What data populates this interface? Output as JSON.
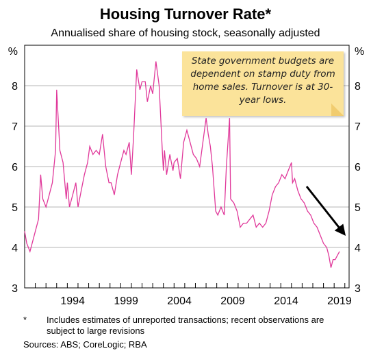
{
  "title": "Housing Turnover Rate*",
  "subtitle": "Annualised share of housing stock, seasonally adjusted",
  "annotation": "State government budgets are dependent on stamp duty from home sales. Turnover is at 30-year lows.",
  "footnote_marker": "*",
  "footnote_text": "Includes estimates of unreported transactions; recent observations are subject to large revisions",
  "sources": "Sources:   ABS; CoreLogic; RBA",
  "colors": {
    "line": "#e0389a",
    "grid": "#b4b4b4",
    "arrow": "#000000",
    "note_bg": "#fbe39a"
  },
  "chart_data": {
    "type": "line",
    "title": "Housing Turnover Rate*",
    "subtitle": "Annualised share of housing stock, seasonally adjusted",
    "y_unit_label": "%",
    "ylim": [
      3,
      9
    ],
    "xlim": [
      1990.0,
      2020.4
    ],
    "y_ticks": [
      3,
      4,
      5,
      6,
      7,
      8
    ],
    "x_ticks": [
      1994,
      1999,
      2004,
      2009,
      2014,
      2019
    ],
    "x_tick_labels": [
      "1994",
      "1999",
      "2004",
      "2009",
      "2014",
      "2019"
    ],
    "grid": true,
    "series": [
      {
        "x": [
          1990.0,
          1990.2,
          1990.5,
          1990.8,
          1991.0,
          1991.3,
          1991.5,
          1991.7,
          1992.0,
          1992.3,
          1992.6,
          1992.9,
          1993.0,
          1993.3,
          1993.6,
          1993.9,
          1994.0,
          1994.2,
          1994.5,
          1994.8,
          1995.0,
          1995.3,
          1995.6,
          1995.9,
          1996.1,
          1996.4,
          1996.7,
          1997.0,
          1997.3,
          1997.6,
          1997.9,
          1998.1,
          1998.4,
          1998.7,
          1999.0,
          1999.3,
          1999.5,
          1999.8,
          2000.0,
          2000.2,
          2000.5,
          2000.8,
          2001.0,
          2001.3,
          2001.5,
          2001.8,
          2002.0,
          2002.3,
          2002.6,
          2002.9,
          2003.0,
          2003.1,
          2003.3,
          2003.6,
          2003.9,
          2004.0,
          2004.3,
          2004.6,
          2004.9,
          2005.2,
          2005.5,
          2005.8,
          2006.1,
          2006.4,
          2006.7,
          2007.0,
          2007.2,
          2007.4,
          2007.6,
          2007.9,
          2008.1,
          2008.4,
          2008.7,
          2008.9,
          2009.2,
          2009.3,
          2009.6,
          2009.9,
          2010.2,
          2010.5,
          2010.8,
          2011.1,
          2011.4,
          2011.7,
          2012.0,
          2012.3,
          2012.6,
          2012.9,
          2013.2,
          2013.5,
          2013.8,
          2014.1,
          2014.4,
          2014.7,
          2015.0,
          2015.1,
          2015.3,
          2015.6,
          2015.9,
          2016.2,
          2016.5,
          2016.8,
          2017.1,
          2017.4,
          2017.7,
          2018.0,
          2018.3,
          2018.5,
          2018.7,
          2018.9,
          2019.1,
          2019.3,
          2019.5
        ],
        "y": [
          4.4,
          4.1,
          3.9,
          4.2,
          4.4,
          4.7,
          5.8,
          5.2,
          5.0,
          5.3,
          5.6,
          6.4,
          7.9,
          6.4,
          6.1,
          5.2,
          5.6,
          5.0,
          5.3,
          5.6,
          5.0,
          5.4,
          5.8,
          6.1,
          6.5,
          6.3,
          6.4,
          6.3,
          6.8,
          6.0,
          5.6,
          5.6,
          5.3,
          5.8,
          6.1,
          6.4,
          6.3,
          6.6,
          5.8,
          6.7,
          8.4,
          7.9,
          8.1,
          8.1,
          7.6,
          8.0,
          7.8,
          8.6,
          8.0,
          6.4,
          5.9,
          6.4,
          5.8,
          6.3,
          5.9,
          6.1,
          6.2,
          5.7,
          6.6,
          6.9,
          6.6,
          6.3,
          6.2,
          6.0,
          6.6,
          7.2,
          6.8,
          6.5,
          6.0,
          4.9,
          4.8,
          5.0,
          4.8,
          6.0,
          7.2,
          5.2,
          5.1,
          4.9,
          4.5,
          4.6,
          4.6,
          4.7,
          4.8,
          4.5,
          4.6,
          4.5,
          4.6,
          4.9,
          5.3,
          5.5,
          5.6,
          5.8,
          5.7,
          5.9,
          6.1,
          5.6,
          5.7,
          5.4,
          5.2,
          5.1,
          4.9,
          4.8,
          4.6,
          4.5,
          4.3,
          4.1,
          4.0,
          3.8,
          3.5,
          3.7,
          3.7,
          3.8,
          3.9
        ]
      }
    ]
  }
}
